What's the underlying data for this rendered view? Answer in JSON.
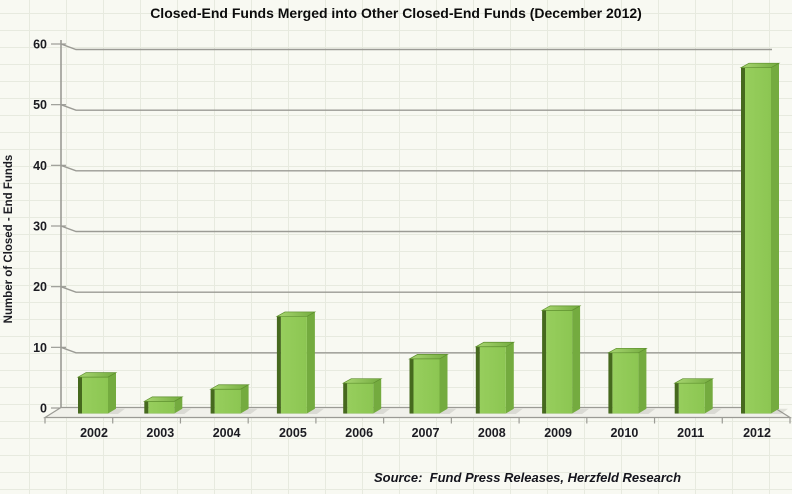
{
  "title": "Closed-End Funds Merged into Other Closed-End Funds (December 2012)",
  "source_note": "Source:  Fund Press Releases, Herzfeld Research",
  "chart_data": {
    "type": "bar",
    "style": "3d-clustered-column",
    "title": "Closed-End Funds Merged into Other Closed-End Funds (December 2012)",
    "categories": [
      "2002",
      "2003",
      "2004",
      "2005",
      "2006",
      "2007",
      "2008",
      "2009",
      "2010",
      "2011",
      "2012"
    ],
    "values": [
      6,
      2,
      4,
      16,
      5,
      9,
      11,
      17,
      10,
      5,
      57
    ],
    "xlabel": "",
    "ylabel": "Number of Closed - End Funds",
    "ylim": [
      0,
      60
    ],
    "yticks": [
      0,
      10,
      20,
      30,
      40,
      50,
      60
    ],
    "grid": true,
    "legend": false,
    "annotation": "Source:  Fund Press Releases, Herzfeld Research",
    "colors": {
      "bar_front": "#8CC652",
      "bar_front_light": "#97CE5D",
      "bar_top_light": "#A8D671",
      "bar_top_dark": "#74AC3F",
      "bar_side": "#74AB3F",
      "bar_left_edge": "#46691E",
      "axis_gray": "#9B9B95",
      "floor_fill": "#F1F1EB",
      "text": "#1C1C22",
      "background": "#F8F9F2",
      "sheet_gridline": "#E7EADF"
    }
  }
}
